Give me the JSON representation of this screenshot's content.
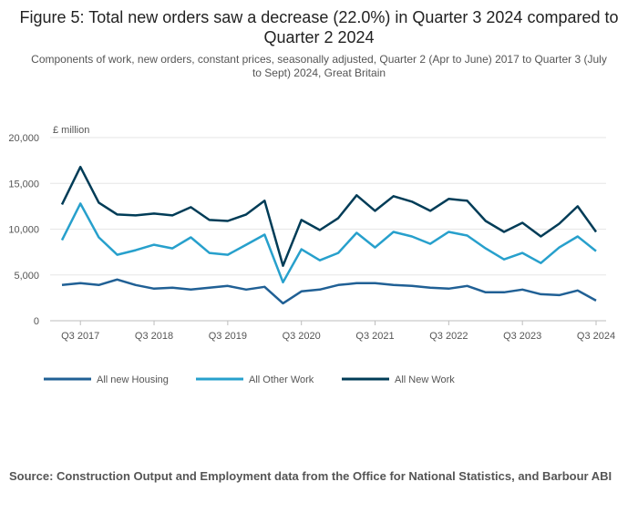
{
  "title": "Figure 5: Total new orders saw a decrease (22.0%) in Quarter 3 2024 compared to Quarter 2 2024",
  "subtitle": "Components of work, new orders, constant prices, seasonally adjusted, Quarter 2 (Apr to June) 2017 to Quarter 3 (July to Sept) 2024, Great Britain",
  "source": "Source: Construction Output and Employment data from the Office for National Statistics, and Barbour ABI",
  "colors": {
    "all_new_housing": "#206095",
    "all_other_work": "#27a0cc",
    "all_new_work": "#003c57",
    "grid": "#e6e6e6",
    "axis": "#bdbdbd"
  },
  "chart_data": {
    "type": "line",
    "ylabel": "£ million",
    "ylim": [
      0,
      20000
    ],
    "yticks": [
      0,
      5000,
      10000,
      15000,
      20000
    ],
    "ytick_labels": [
      "0",
      "5,000",
      "10,000",
      "15,000",
      "20,000"
    ],
    "x": [
      "Q2 2017",
      "Q3 2017",
      "Q4 2017",
      "Q1 2018",
      "Q2 2018",
      "Q3 2018",
      "Q4 2018",
      "Q1 2019",
      "Q2 2019",
      "Q3 2019",
      "Q4 2019",
      "Q1 2020",
      "Q2 2020",
      "Q3 2020",
      "Q4 2020",
      "Q1 2021",
      "Q2 2021",
      "Q3 2021",
      "Q4 2021",
      "Q1 2022",
      "Q2 2022",
      "Q3 2022",
      "Q4 2022",
      "Q1 2023",
      "Q2 2023",
      "Q3 2023",
      "Q4 2023",
      "Q1 2024",
      "Q2 2024",
      "Q3 2024"
    ],
    "xtick_labels": [
      "Q3 2017",
      "Q3 2018",
      "Q3 2019",
      "Q3 2020",
      "Q3 2021",
      "Q3 2022",
      "Q3 2023",
      "Q3 2024"
    ],
    "grid": true,
    "legend_position": "bottom",
    "series": [
      {
        "name": "All new Housing",
        "color_key": "all_new_housing",
        "values": [
          3900,
          4100,
          3900,
          4500,
          3900,
          3500,
          3600,
          3400,
          3600,
          3800,
          3400,
          3700,
          1900,
          3200,
          3400,
          3900,
          4100,
          4100,
          3900,
          3800,
          3600,
          3500,
          3800,
          3100,
          3100,
          3400,
          2900,
          2800,
          3300,
          2200
        ]
      },
      {
        "name": "All Other Work",
        "color_key": "all_other_work",
        "values": [
          8800,
          12800,
          9100,
          7200,
          7700,
          8300,
          7900,
          9100,
          7400,
          7200,
          8300,
          9400,
          4200,
          7800,
          6600,
          7400,
          9600,
          8000,
          9700,
          9200,
          8400,
          9700,
          9300,
          7900,
          6700,
          7400,
          6300,
          8000,
          9200,
          7600
        ]
      },
      {
        "name": "All New Work",
        "color_key": "all_new_work",
        "values": [
          12700,
          16800,
          12900,
          11600,
          11500,
          11700,
          11500,
          12400,
          11000,
          10900,
          11600,
          13100,
          6000,
          11000,
          9900,
          11200,
          13700,
          12000,
          13600,
          13000,
          12000,
          13300,
          13100,
          10900,
          9700,
          10700,
          9200,
          10600,
          12500,
          9700
        ]
      }
    ]
  }
}
